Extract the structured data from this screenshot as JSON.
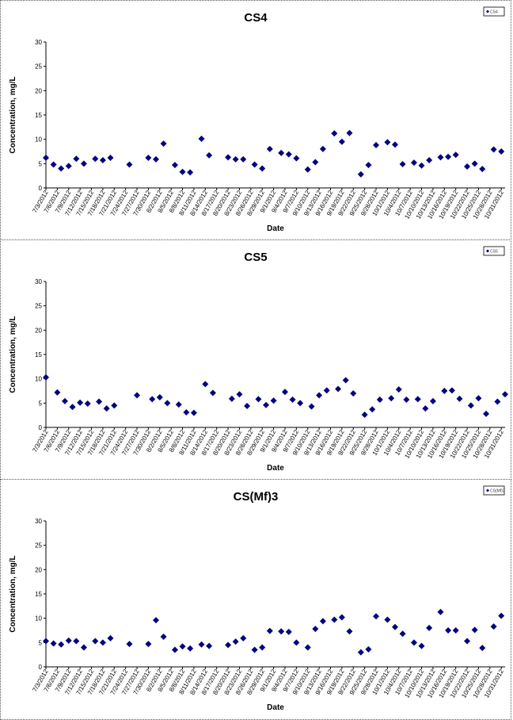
{
  "chart_data": [
    {
      "type": "scatter",
      "title": "CS4",
      "xlabel": "Date",
      "ylabel": "Concentration, mg/L",
      "ylim": [
        0,
        30
      ],
      "yticks": [
        "0",
        "5",
        "10",
        "15",
        "20",
        "25",
        "30"
      ],
      "x_categories": [
        "7/3/2012",
        "7/6/2012",
        "7/9/2012",
        "7/12/2012",
        "7/15/2012",
        "7/18/2012",
        "7/21/2012",
        "7/24/2012",
        "7/27/2012",
        "7/30/2012",
        "8/2/2012",
        "8/5/2012",
        "8/8/2012",
        "8/11/2012",
        "8/14/2012",
        "8/17/2012",
        "8/20/2012",
        "8/23/2012",
        "8/26/2012",
        "8/29/2012",
        "9/1/2012",
        "9/4/2012",
        "9/7/2012",
        "9/10/2012",
        "9/13/2012",
        "9/16/2012",
        "9/19/2012",
        "9/22/2012",
        "9/25/2012",
        "9/28/2012",
        "10/1/2012",
        "10/4/2012",
        "10/7/2012",
        "10/10/2012",
        "10/13/2012",
        "10/16/2012",
        "10/19/2012",
        "10/22/2012",
        "10/25/2012",
        "10/28/2012",
        "10/31/2012"
      ],
      "legend": {
        "position": "top-right",
        "label": "CS4"
      },
      "grid": false,
      "series": [
        {
          "name": "CS4",
          "color": "#000080",
          "x": [
            "7/3/2012",
            "7/5/2012",
            "7/7/2012",
            "7/9/2012",
            "7/11/2012",
            "7/13/2012",
            "7/16/2012",
            "7/18/2012",
            "7/20/2012",
            "7/25/2012",
            "7/30/2012",
            "8/1/2012",
            "8/3/2012",
            "8/6/2012",
            "8/8/2012",
            "8/10/2012",
            "8/13/2012",
            "8/15/2012",
            "8/20/2012",
            "8/22/2012",
            "8/24/2012",
            "8/27/2012",
            "8/29/2012",
            "8/31/2012",
            "9/3/2012",
            "9/5/2012",
            "9/7/2012",
            "9/10/2012",
            "9/12/2012",
            "9/14/2012",
            "9/17/2012",
            "9/19/2012",
            "9/21/2012",
            "9/24/2012",
            "9/26/2012",
            "9/28/2012",
            "10/1/2012",
            "10/3/2012",
            "10/5/2012",
            "10/8/2012",
            "10/10/2012",
            "10/12/2012",
            "10/15/2012",
            "10/17/2012",
            "10/19/2012",
            "10/22/2012",
            "10/24/2012",
            "10/26/2012",
            "10/29/2012",
            "10/31/2012"
          ],
          "y": [
            6.2,
            4.8,
            4.0,
            4.5,
            6.0,
            5.0,
            6.0,
            5.7,
            6.2,
            4.8,
            6.2,
            5.9,
            9.1,
            4.7,
            3.3,
            3.2,
            10.1,
            6.7,
            6.3,
            5.9,
            5.9,
            4.8,
            4.0,
            8.0,
            7.2,
            6.9,
            6.1,
            3.8,
            5.3,
            8.0,
            11.2,
            9.5,
            11.3,
            2.8,
            4.7,
            8.8,
            9.4,
            8.9,
            4.9,
            5.2,
            4.6,
            5.7,
            6.3,
            6.4,
            6.8,
            4.4,
            5.0,
            3.9,
            7.9,
            7.5
          ]
        }
      ]
    },
    {
      "type": "scatter",
      "title": "CS5",
      "xlabel": "Date",
      "ylabel": "Concentration, mg/L",
      "ylim": [
        0,
        30
      ],
      "yticks": [
        "0",
        "5",
        "10",
        "15",
        "20",
        "25",
        "30"
      ],
      "x_categories": [
        "7/3/2012",
        "7/6/2012",
        "7/9/2012",
        "7/12/2012",
        "7/15/2012",
        "7/18/2012",
        "7/21/2012",
        "7/24/2012",
        "7/27/2012",
        "7/30/2012",
        "8/2/2012",
        "8/5/2012",
        "8/8/2012",
        "8/11/2012",
        "8/14/2012",
        "8/17/2012",
        "8/20/2012",
        "8/23/2012",
        "8/26/2012",
        "8/29/2012",
        "9/1/2012",
        "9/4/2012",
        "9/7/2012",
        "9/10/2012",
        "9/13/2012",
        "9/16/2012",
        "9/19/2012",
        "9/22/2012",
        "9/25/2012",
        "9/28/2012",
        "10/1/2012",
        "10/4/2012",
        "10/7/2012",
        "10/10/2012",
        "10/13/2012",
        "10/16/2012",
        "10/19/2012",
        "10/22/2012",
        "10/25/2012",
        "10/28/2012",
        "10/31/2012"
      ],
      "legend": {
        "position": "top-right",
        "label": "CS5"
      },
      "grid": false,
      "series": [
        {
          "name": "CS5",
          "color": "#000080",
          "x": [
            "7/3/2012",
            "7/6/2012",
            "7/8/2012",
            "7/10/2012",
            "7/12/2012",
            "7/14/2012",
            "7/17/2012",
            "7/19/2012",
            "7/21/2012",
            "7/27/2012",
            "7/31/2012",
            "8/2/2012",
            "8/4/2012",
            "8/7/2012",
            "8/9/2012",
            "8/11/2012",
            "8/14/2012",
            "8/16/2012",
            "8/21/2012",
            "8/23/2012",
            "8/25/2012",
            "8/28/2012",
            "8/30/2012",
            "9/1/2012",
            "9/4/2012",
            "9/6/2012",
            "9/8/2012",
            "9/11/2012",
            "9/13/2012",
            "9/15/2012",
            "9/18/2012",
            "9/20/2012",
            "9/22/2012",
            "9/25/2012",
            "9/27/2012",
            "9/29/2012",
            "10/2/2012",
            "10/4/2012",
            "10/6/2012",
            "10/9/2012",
            "10/11/2012",
            "10/13/2012",
            "10/16/2012",
            "10/18/2012",
            "10/20/2012",
            "10/23/2012",
            "10/25/2012",
            "10/27/2012",
            "10/30/2012",
            "11/1/2012"
          ],
          "y": [
            10.3,
            7.2,
            5.4,
            4.2,
            5.1,
            4.9,
            5.3,
            3.9,
            4.5,
            6.6,
            5.8,
            6.2,
            5.0,
            4.7,
            3.1,
            3.0,
            8.9,
            7.1,
            5.9,
            6.8,
            4.4,
            5.8,
            4.6,
            5.5,
            7.3,
            5.7,
            5.0,
            4.3,
            6.6,
            7.6,
            7.9,
            9.7,
            7.0,
            2.6,
            3.7,
            5.7,
            6.0,
            7.8,
            5.7,
            5.8,
            3.9,
            5.4,
            7.5,
            7.6,
            5.9,
            4.5,
            6.0,
            2.8,
            5.3,
            6.8
          ]
        }
      ]
    },
    {
      "type": "scatter",
      "title": "CS(Mf)3",
      "xlabel": "Date",
      "ylabel": "Concentration, mg/L",
      "ylim": [
        0,
        30
      ],
      "yticks": [
        "0",
        "5",
        "10",
        "15",
        "20",
        "25",
        "30"
      ],
      "x_categories": [
        "7/3/2012",
        "7/6/2012",
        "7/9/2012",
        "7/12/2012",
        "7/15/2012",
        "7/18/2012",
        "7/21/2012",
        "7/24/2012",
        "7/27/2012",
        "7/30/2012",
        "8/2/2012",
        "8/5/2012",
        "8/8/2012",
        "8/11/2012",
        "8/14/2012",
        "8/17/2012",
        "8/20/2012",
        "8/23/2012",
        "8/26/2012",
        "8/29/2012",
        "9/1/2012",
        "9/4/2012",
        "9/7/2012",
        "9/10/2012",
        "9/13/2012",
        "9/16/2012",
        "9/19/2012",
        "9/22/2012",
        "9/25/2012",
        "9/28/2012",
        "10/1/2012",
        "10/4/2012",
        "10/7/2012",
        "10/10/2012",
        "10/13/2012",
        "10/16/2012",
        "10/19/2012",
        "10/22/2012",
        "10/25/2012",
        "10/28/2012",
        "10/31/2012"
      ],
      "legend": {
        "position": "top-right",
        "label": "CS(Mf)3"
      },
      "grid": false,
      "series": [
        {
          "name": "CS(Mf)3",
          "color": "#000080",
          "x": [
            "7/3/2012",
            "7/5/2012",
            "7/7/2012",
            "7/9/2012",
            "7/11/2012",
            "7/13/2012",
            "7/16/2012",
            "7/18/2012",
            "7/20/2012",
            "7/25/2012",
            "7/30/2012",
            "8/1/2012",
            "8/3/2012",
            "8/6/2012",
            "8/8/2012",
            "8/10/2012",
            "8/13/2012",
            "8/15/2012",
            "8/20/2012",
            "8/22/2012",
            "8/24/2012",
            "8/27/2012",
            "8/29/2012",
            "8/31/2012",
            "9/3/2012",
            "9/5/2012",
            "9/7/2012",
            "9/10/2012",
            "9/12/2012",
            "9/14/2012",
            "9/17/2012",
            "9/19/2012",
            "9/21/2012",
            "9/24/2012",
            "9/26/2012",
            "9/28/2012",
            "10/1/2012",
            "10/3/2012",
            "10/5/2012",
            "10/8/2012",
            "10/10/2012",
            "10/12/2012",
            "10/15/2012",
            "10/17/2012",
            "10/19/2012",
            "10/22/2012",
            "10/24/2012",
            "10/26/2012",
            "10/29/2012",
            "10/31/2012"
          ],
          "y": [
            5.3,
            4.8,
            4.6,
            5.4,
            5.3,
            4.0,
            5.3,
            5.0,
            5.9,
            4.7,
            4.7,
            9.6,
            6.2,
            3.5,
            4.2,
            3.8,
            4.6,
            4.3,
            4.5,
            5.2,
            5.9,
            3.5,
            4.0,
            7.4,
            7.3,
            7.2,
            5.0,
            4.0,
            7.8,
            9.4,
            9.7,
            10.2,
            7.3,
            3.0,
            3.6,
            10.4,
            9.7,
            8.2,
            6.8,
            5.0,
            4.3,
            8.0,
            11.3,
            7.5,
            7.5,
            5.3,
            7.6,
            3.9,
            8.3,
            10.5
          ]
        }
      ]
    }
  ]
}
